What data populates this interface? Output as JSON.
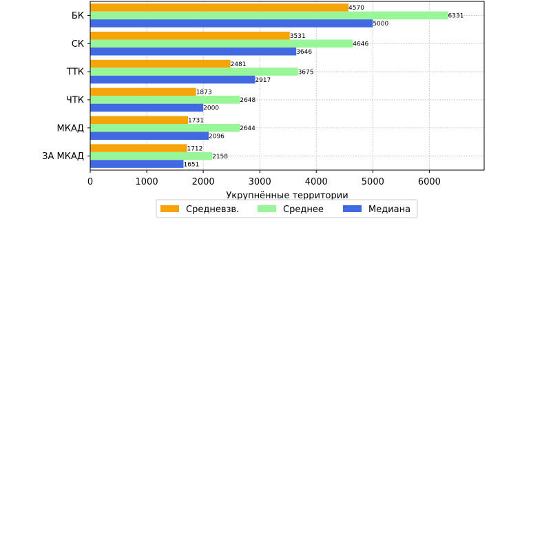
{
  "chart_data": {
    "type": "bar",
    "orientation": "horizontal",
    "categories": [
      "БК",
      "СК",
      "ТТК",
      "ЧТК",
      "МКАД",
      "ЗА МКАД"
    ],
    "series": [
      {
        "name": "Средневзв.",
        "color": "#f5a50a",
        "values": [
          4570,
          3531,
          2481,
          1873,
          1731,
          1712
        ]
      },
      {
        "name": "Среднее",
        "color": "#98f598",
        "values": [
          6331,
          4646,
          3675,
          2648,
          2644,
          2158
        ]
      },
      {
        "name": "Медиана",
        "color": "#4169e1",
        "values": [
          5000,
          3646,
          2917,
          2000,
          2096,
          1651
        ]
      }
    ],
    "xlabel": "Укрупнённые территории",
    "ylabel": "",
    "xlim": [
      0,
      6970
    ],
    "xticks": [
      "0",
      "1000",
      "2000",
      "3000",
      "4000",
      "5000",
      "6000"
    ],
    "grid": true,
    "legend_position": "bottom-center"
  }
}
